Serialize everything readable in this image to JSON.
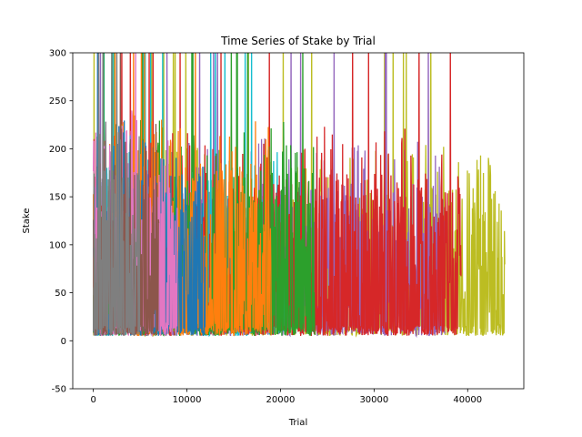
{
  "chart_data": {
    "type": "line",
    "title": "Time Series of Stake by Trial",
    "xlabel": "Trial",
    "ylabel": "Stake",
    "xlim": [
      -2200,
      46000
    ],
    "ylim": [
      -50,
      300
    ],
    "xticks": [
      0,
      10000,
      20000,
      30000,
      40000
    ],
    "yticks": [
      -50,
      0,
      50,
      100,
      150,
      200,
      250,
      300
    ],
    "grid": false,
    "legend": "none",
    "series": [
      {
        "color": "#bcbd22",
        "x_range": [
          0,
          44000
        ],
        "typical_range": [
          12,
          160
        ],
        "min": 5,
        "max": 300
      },
      {
        "color": "#9467bd",
        "x_range": [
          0,
          37600
        ],
        "typical_range": [
          12,
          165
        ],
        "min": 5,
        "max": 300
      },
      {
        "color": "#17becf",
        "x_range": [
          0,
          20800
        ],
        "typical_range": [
          12,
          155
        ],
        "min": 5,
        "max": 300
      },
      {
        "color": "#d62728",
        "x_range": [
          0,
          39300
        ],
        "typical_range": [
          12,
          175
        ],
        "min": 5,
        "max": 300
      },
      {
        "color": "#2ca02c",
        "x_range": [
          0,
          23700
        ],
        "typical_range": [
          12,
          180
        ],
        "min": 5,
        "max": 300
      },
      {
        "color": "#ff7f0e",
        "x_range": [
          0,
          19000
        ],
        "typical_range": [
          12,
          185
        ],
        "min": 5,
        "max": 300
      },
      {
        "color": "#1f77b4",
        "x_range": [
          0,
          12000
        ],
        "typical_range": [
          12,
          180
        ],
        "min": 5,
        "max": 300
      },
      {
        "color": "#e377c2",
        "x_range": [
          0,
          9000
        ],
        "typical_range": [
          12,
          190
        ],
        "min": 5,
        "max": 300
      },
      {
        "color": "#8c564b",
        "x_range": [
          0,
          7000
        ],
        "typical_range": [
          12,
          185
        ],
        "min": 5,
        "max": 300
      },
      {
        "color": "#7f7f7f",
        "x_range": [
          0,
          5000
        ],
        "typical_range": [
          12,
          180
        ],
        "min": 5,
        "max": 300
      }
    ]
  }
}
